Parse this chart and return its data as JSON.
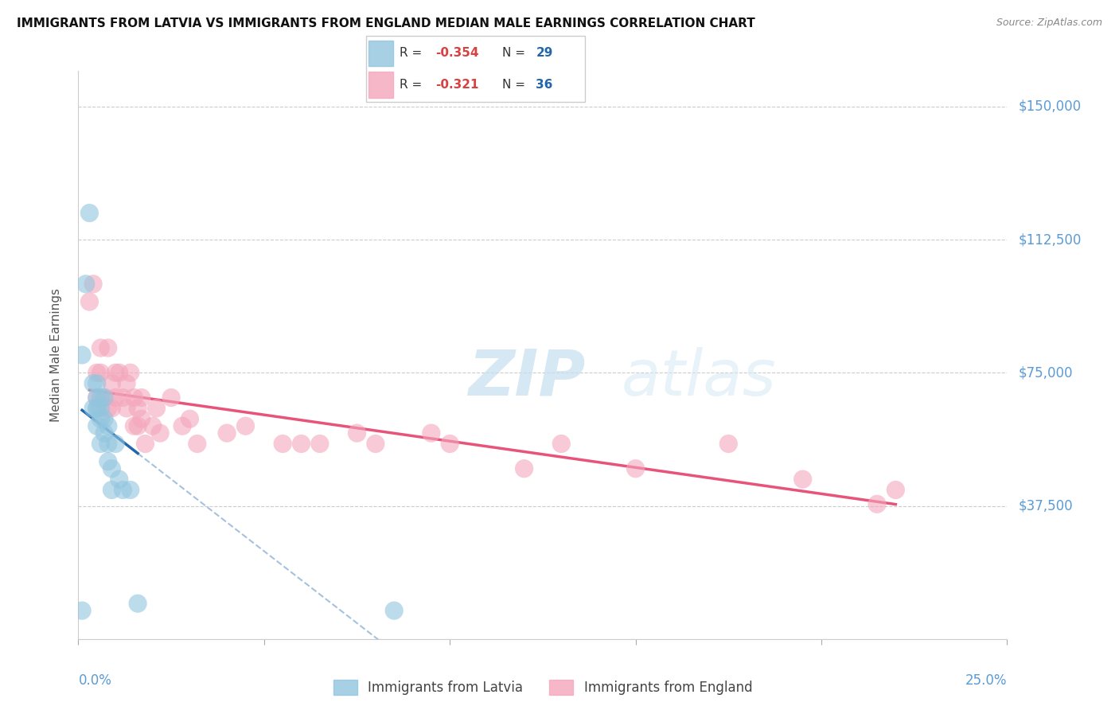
{
  "title": "IMMIGRANTS FROM LATVIA VS IMMIGRANTS FROM ENGLAND MEDIAN MALE EARNINGS CORRELATION CHART",
  "source": "Source: ZipAtlas.com",
  "ylabel": "Median Male Earnings",
  "yticks": [
    0,
    37500,
    75000,
    112500,
    150000
  ],
  "ytick_labels": [
    "",
    "$37,500",
    "$75,000",
    "$112,500",
    "$150,000"
  ],
  "xlim": [
    0.0,
    0.25
  ],
  "ylim": [
    0,
    160000
  ],
  "color_latvia": "#92c5de",
  "color_england": "#f4a6bc",
  "color_latvia_line": "#2166ac",
  "color_england_line": "#e8537a",
  "watermark_zip": "ZIP",
  "watermark_atlas": "atlas",
  "latvia_x": [
    0.001,
    0.001,
    0.002,
    0.003,
    0.004,
    0.004,
    0.005,
    0.005,
    0.005,
    0.005,
    0.005,
    0.006,
    0.006,
    0.006,
    0.006,
    0.007,
    0.007,
    0.007,
    0.008,
    0.008,
    0.008,
    0.009,
    0.009,
    0.01,
    0.011,
    0.012,
    0.014,
    0.016,
    0.085
  ],
  "latvia_y": [
    8000,
    80000,
    100000,
    120000,
    65000,
    72000,
    68000,
    65000,
    72000,
    65000,
    60000,
    62000,
    68000,
    65000,
    55000,
    58000,
    62000,
    68000,
    55000,
    50000,
    60000,
    48000,
    42000,
    55000,
    45000,
    42000,
    42000,
    10000,
    8000
  ],
  "england_x": [
    0.003,
    0.004,
    0.005,
    0.005,
    0.006,
    0.006,
    0.007,
    0.008,
    0.008,
    0.009,
    0.009,
    0.01,
    0.01,
    0.011,
    0.012,
    0.013,
    0.013,
    0.014,
    0.015,
    0.015,
    0.016,
    0.016,
    0.017,
    0.017,
    0.018,
    0.02,
    0.021,
    0.022,
    0.025,
    0.028,
    0.03,
    0.032,
    0.04,
    0.045,
    0.055,
    0.06,
    0.065,
    0.075,
    0.08,
    0.095,
    0.1,
    0.12,
    0.13,
    0.15,
    0.175,
    0.195,
    0.215,
    0.22
  ],
  "england_y": [
    95000,
    100000,
    75000,
    68000,
    82000,
    75000,
    68000,
    82000,
    65000,
    72000,
    65000,
    75000,
    68000,
    75000,
    68000,
    72000,
    65000,
    75000,
    68000,
    60000,
    65000,
    60000,
    68000,
    62000,
    55000,
    60000,
    65000,
    58000,
    68000,
    60000,
    62000,
    55000,
    58000,
    60000,
    55000,
    55000,
    55000,
    58000,
    55000,
    58000,
    55000,
    48000,
    55000,
    48000,
    55000,
    45000,
    38000,
    42000
  ]
}
